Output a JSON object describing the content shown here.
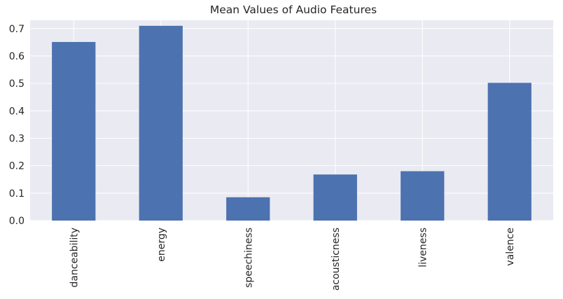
{
  "chart_data": {
    "type": "bar",
    "title": "Mean Values of Audio Features",
    "xlabel": "",
    "ylabel": "",
    "categories": [
      "danceability",
      "energy",
      "speechiness",
      "acousticness",
      "liveness",
      "valence"
    ],
    "values": [
      0.651,
      0.71,
      0.085,
      0.168,
      0.18,
      0.502
    ],
    "ylim": [
      0,
      0.73
    ],
    "yticks": [
      "0.0",
      "0.1",
      "0.2",
      "0.3",
      "0.4",
      "0.5",
      "0.6",
      "0.7"
    ],
    "grid": true,
    "legend": "none",
    "colors": {
      "bar": "#4c72b0",
      "plot_background": "#eaeaf2",
      "grid": "#ffffff"
    }
  }
}
